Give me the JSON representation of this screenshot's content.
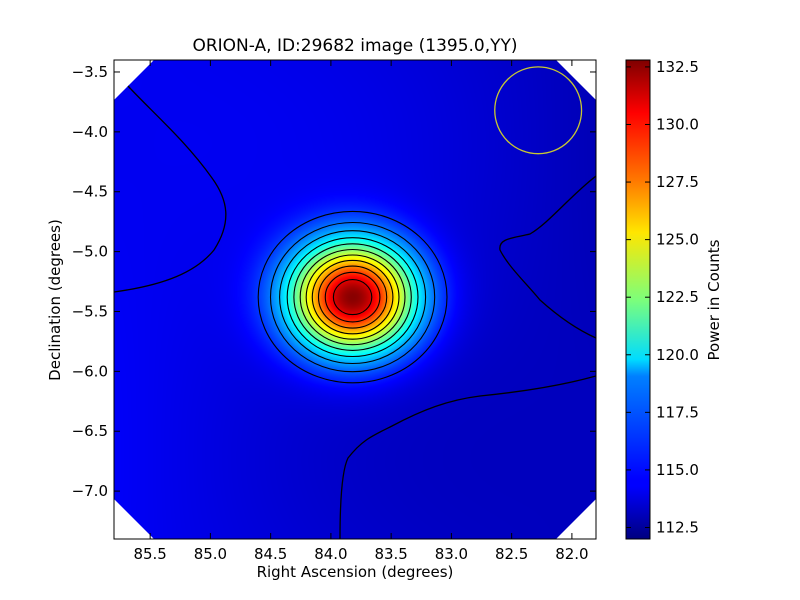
{
  "chart_data": {
    "type": "heatmap",
    "title": "ORION-A, ID:29682 image (1395.0,YY)",
    "xlabel": "Right Ascension (degrees)",
    "ylabel": "Declination (degrees)",
    "colorbar_label": "Power in Counts",
    "colormap": "jet",
    "xlim": [
      85.8,
      81.8
    ],
    "ylim": [
      -7.4,
      -3.4
    ],
    "clim": [
      112.0,
      132.8
    ],
    "x_ticks": [
      {
        "value": 85.5,
        "label": "85.5"
      },
      {
        "value": 85.0,
        "label": "85.0"
      },
      {
        "value": 84.5,
        "label": "84.5"
      },
      {
        "value": 84.0,
        "label": "84.0"
      },
      {
        "value": 83.5,
        "label": "83.5"
      },
      {
        "value": 83.0,
        "label": "83.0"
      },
      {
        "value": 82.5,
        "label": "82.5"
      },
      {
        "value": 82.0,
        "label": "82.0"
      }
    ],
    "y_ticks": [
      {
        "value": -3.5,
        "label": "−3.5"
      },
      {
        "value": -4.0,
        "label": "−4.0"
      },
      {
        "value": -4.5,
        "label": "−4.5"
      },
      {
        "value": -5.0,
        "label": "−5.0"
      },
      {
        "value": -5.5,
        "label": "−5.5"
      },
      {
        "value": -6.0,
        "label": "−6.0"
      },
      {
        "value": -6.5,
        "label": "−6.5"
      },
      {
        "value": -7.0,
        "label": "−7.0"
      }
    ],
    "colorbar_ticks": [
      {
        "value": 112.5,
        "label": "112.5"
      },
      {
        "value": 115.0,
        "label": "115.0"
      },
      {
        "value": 117.5,
        "label": "117.5"
      },
      {
        "value": 120.0,
        "label": "120.0"
      },
      {
        "value": 122.5,
        "label": "122.5"
      },
      {
        "value": 125.0,
        "label": "125.0"
      },
      {
        "value": 127.5,
        "label": "127.5"
      },
      {
        "value": 130.0,
        "label": "130.0"
      },
      {
        "value": 132.5,
        "label": "132.5"
      }
    ],
    "source": {
      "ra": 83.82,
      "dec": -5.38,
      "peak": 132.6,
      "sigma_ra": 0.36,
      "sigma_dec": 0.32
    },
    "background_level": 113.8,
    "beam_circle": {
      "ra": 82.28,
      "dec": -3.82,
      "radius_deg": 0.36,
      "color": "#c8c832"
    },
    "grid": false
  }
}
